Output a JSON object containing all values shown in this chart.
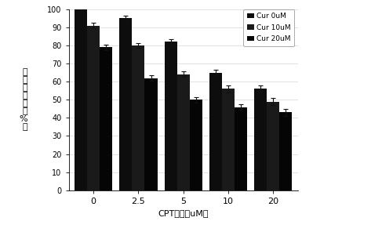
{
  "categories": [
    "0",
    "2.5",
    "5",
    "10",
    "20"
  ],
  "series": {
    "Cur 0uM": [
      100,
      95,
      82,
      65,
      56
    ],
    "Cur 10uM": [
      91,
      80,
      64,
      56,
      49
    ],
    "Cur 20uM": [
      79,
      62,
      50,
      46,
      43
    ]
  },
  "errors": {
    "Cur 0uM": [
      1.0,
      1.5,
      1.5,
      1.5,
      2.0
    ],
    "Cur 10uM": [
      1.5,
      1.5,
      1.5,
      2.0,
      2.0
    ],
    "Cur 20uM": [
      1.5,
      1.5,
      1.5,
      1.5,
      2.0
    ]
  },
  "bar_colors": [
    "#111111",
    "#222222",
    "#000000"
  ],
  "ylabel": "细\n胞\n存\n活\n率\n（\n%\n）",
  "xlabel": "CPT浓度（uM）",
  "ylim": [
    0,
    100
  ],
  "yticks": [
    0,
    10,
    20,
    30,
    40,
    50,
    60,
    70,
    80,
    90,
    100
  ],
  "legend_labels": [
    "Cur 0uM",
    "Cur 10uM",
    "Cur 20uM"
  ],
  "bar_width": 0.28,
  "figsize": [
    4.87,
    2.96
  ],
  "dpi": 100
}
